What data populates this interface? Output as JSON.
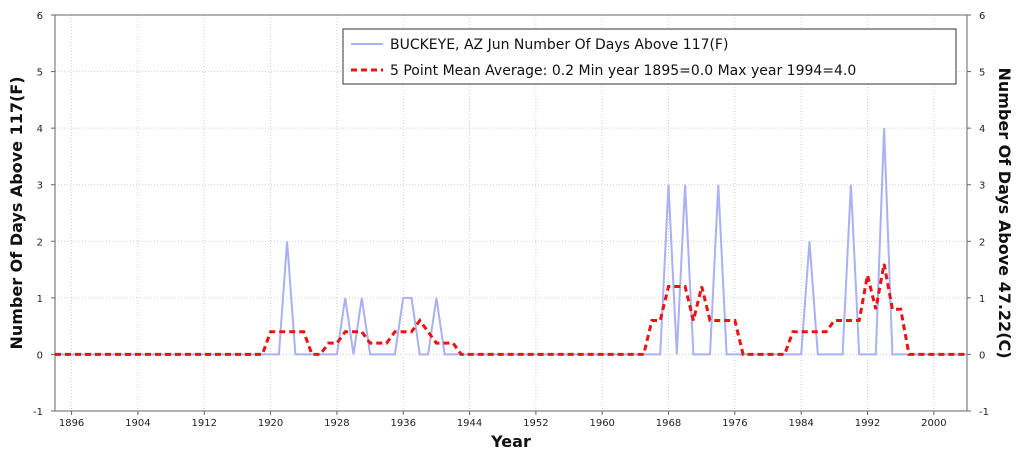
{
  "chart_data": {
    "type": "line",
    "title": "",
    "xlabel": "Year",
    "ylabel_left": "Number Of Days Above 117(F)",
    "ylabel_right": "Number Of Days Above 47.22(C)",
    "xlim": [
      1894,
      2004
    ],
    "ylim": [
      -1,
      6
    ],
    "x_ticks": [
      1896,
      1904,
      1912,
      1920,
      1928,
      1936,
      1944,
      1952,
      1960,
      1968,
      1976,
      1984,
      1992,
      2000
    ],
    "y_ticks": [
      -1,
      0,
      1,
      2,
      3,
      4,
      5,
      6
    ],
    "grid": true,
    "legend_position": "top-right",
    "legend": [
      "BUCKEYE, AZ  Jun  Number Of Days Above 117(F)",
      "5 Point Mean  Average: 0.2  Min year 1895=0.0  Max year 1994=4.0"
    ],
    "colors": {
      "series": "#aab0f4",
      "mean": "#ee1111"
    },
    "series": [
      {
        "name": "BUCKEYE, AZ  Jun  Number Of Days Above 117(F)",
        "style": "solid",
        "points": [
          [
            1894,
            0
          ],
          [
            1921,
            0
          ],
          [
            1922,
            2
          ],
          [
            1923,
            0
          ],
          [
            1928,
            0
          ],
          [
            1929,
            1
          ],
          [
            1930,
            0
          ],
          [
            1931,
            1
          ],
          [
            1932,
            0
          ],
          [
            1935,
            0
          ],
          [
            1936,
            1
          ],
          [
            1937,
            1
          ],
          [
            1938,
            0
          ],
          [
            1939,
            0
          ],
          [
            1940,
            1
          ],
          [
            1941,
            0
          ],
          [
            1967,
            0
          ],
          [
            1968,
            3
          ],
          [
            1969,
            0
          ],
          [
            1970,
            3
          ],
          [
            1971,
            0
          ],
          [
            1973,
            0
          ],
          [
            1974,
            3
          ],
          [
            1975,
            0
          ],
          [
            1984,
            0
          ],
          [
            1985,
            2
          ],
          [
            1986,
            0
          ],
          [
            1989,
            0
          ],
          [
            1990,
            3
          ],
          [
            1991,
            0
          ],
          [
            1993,
            0
          ],
          [
            1994,
            4
          ],
          [
            1995,
            0
          ],
          [
            2004,
            0
          ]
        ]
      },
      {
        "name": "5 Point Mean  Average: 0.2  Min year 1895=0.0  Max year 1994=4.0",
        "style": "dashed",
        "points": [
          [
            1894,
            0
          ],
          [
            1919,
            0
          ],
          [
            1920,
            0.4
          ],
          [
            1924,
            0.4
          ],
          [
            1925,
            0
          ],
          [
            1926,
            0
          ],
          [
            1927,
            0.2
          ],
          [
            1928,
            0.2
          ],
          [
            1929,
            0.4
          ],
          [
            1931,
            0.4
          ],
          [
            1932,
            0.2
          ],
          [
            1934,
            0.2
          ],
          [
            1935,
            0.4
          ],
          [
            1937,
            0.4
          ],
          [
            1938,
            0.6
          ],
          [
            1939,
            0.4
          ],
          [
            1940,
            0.2
          ],
          [
            1942,
            0.2
          ],
          [
            1943,
            0
          ],
          [
            1965,
            0
          ],
          [
            1966,
            0.6
          ],
          [
            1967,
            0.6
          ],
          [
            1968,
            1.2
          ],
          [
            1970,
            1.2
          ],
          [
            1971,
            0.6
          ],
          [
            1972,
            1.2
          ],
          [
            1973,
            0.6
          ],
          [
            1976,
            0.6
          ],
          [
            1977,
            0
          ],
          [
            1982,
            0
          ],
          [
            1983,
            0.4
          ],
          [
            1987,
            0.4
          ],
          [
            1988,
            0.6
          ],
          [
            1991,
            0.6
          ],
          [
            1992,
            1.4
          ],
          [
            1993,
            0.8
          ],
          [
            1994,
            1.6
          ],
          [
            1995,
            0.8
          ],
          [
            1996,
            0.8
          ],
          [
            1997,
            0
          ],
          [
            2004,
            0
          ]
        ]
      }
    ]
  }
}
